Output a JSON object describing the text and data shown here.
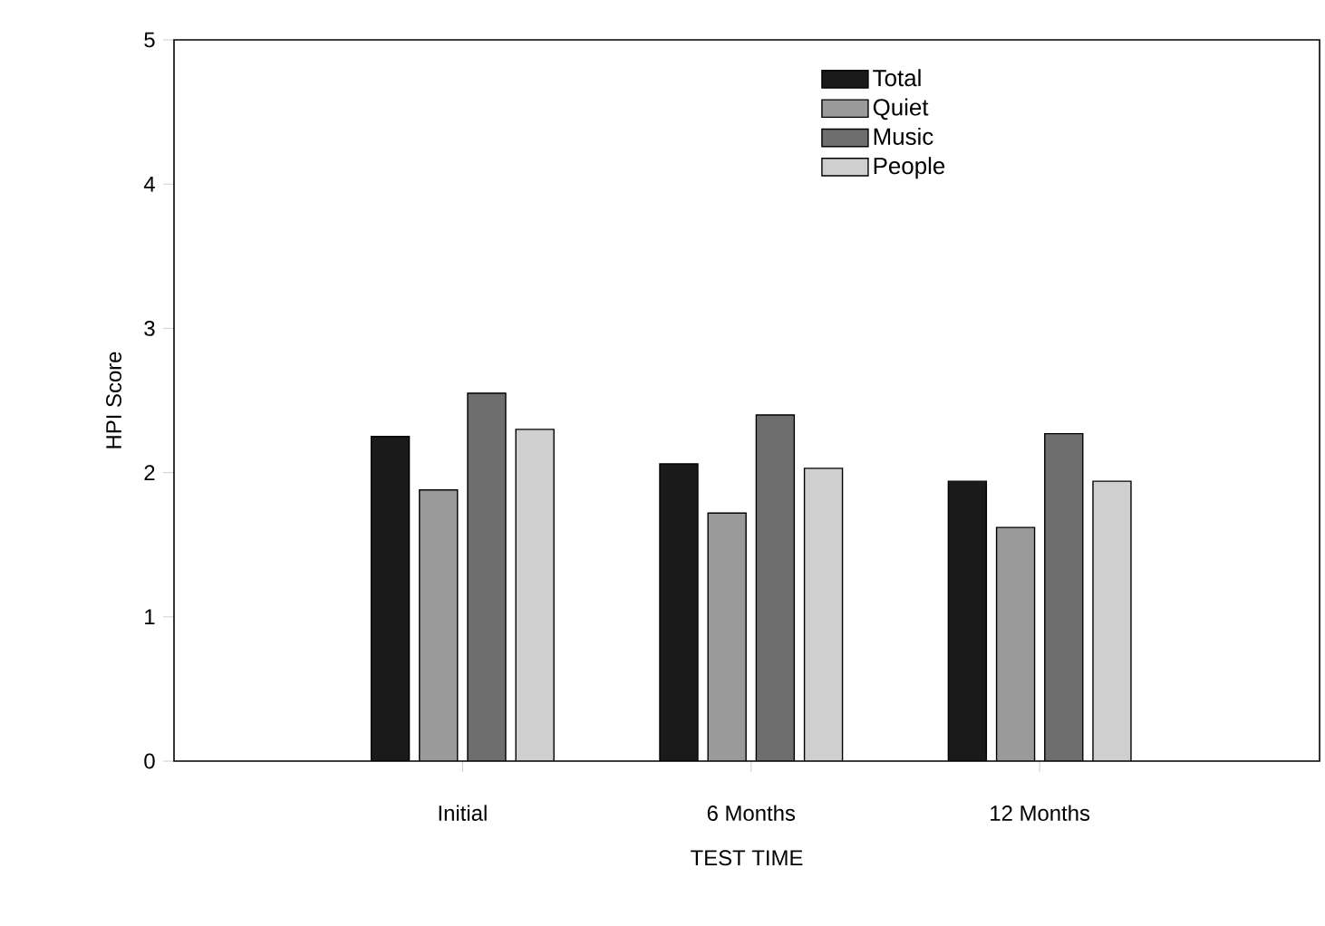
{
  "chart_data": {
    "type": "bar",
    "xlabel": "TEST TIME",
    "ylabel": "HPI Score",
    "categories": [
      "Initial",
      "6 Months",
      "12 Months"
    ],
    "series": [
      {
        "name": "Total",
        "color": "#1a1a1a",
        "values": [
          2.25,
          2.06,
          1.94
        ]
      },
      {
        "name": "Quiet",
        "color": "#9a9a9a",
        "values": [
          1.88,
          1.72,
          1.62
        ]
      },
      {
        "name": "Music",
        "color": "#6e6e6e",
        "values": [
          2.55,
          2.4,
          2.27
        ]
      },
      {
        "name": "People",
        "color": "#cfcfcf",
        "values": [
          2.3,
          2.03,
          1.94
        ]
      }
    ],
    "ylim": [
      0,
      5
    ],
    "yticks": [
      0,
      1,
      2,
      3,
      4,
      5
    ],
    "legend": "top right",
    "grid": false
  }
}
